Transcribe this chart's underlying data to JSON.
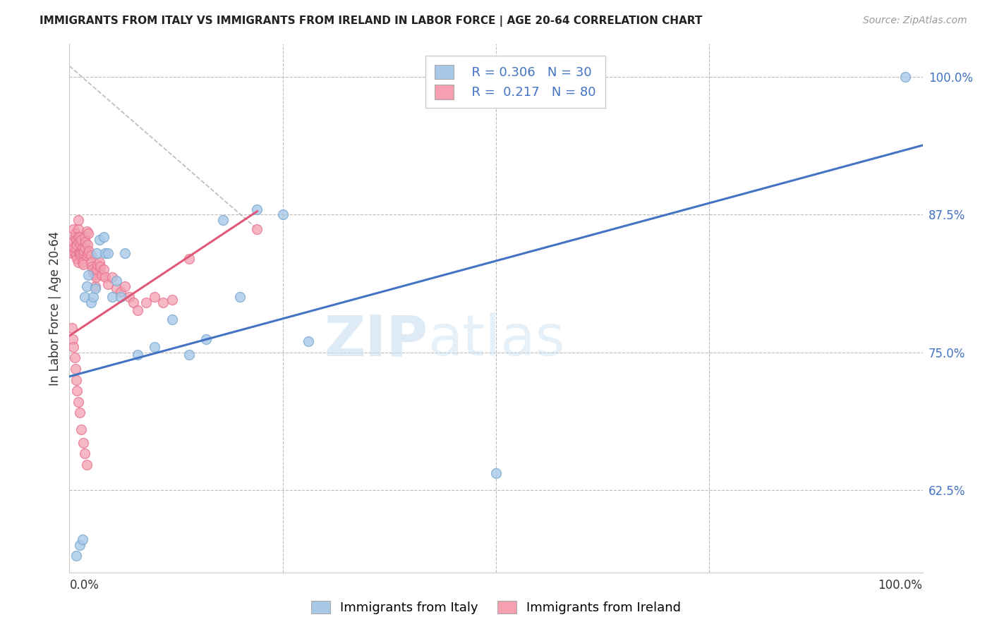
{
  "title": "IMMIGRANTS FROM ITALY VS IMMIGRANTS FROM IRELAND IN LABOR FORCE | AGE 20-64 CORRELATION CHART",
  "source": "Source: ZipAtlas.com",
  "ylabel": "In Labor Force | Age 20-64",
  "xlim": [
    0.0,
    1.0
  ],
  "ylim": [
    0.55,
    1.03
  ],
  "ytick_positions": [
    0.625,
    0.75,
    0.875,
    1.0
  ],
  "ytick_labels": [
    "62.5%",
    "75.0%",
    "87.5%",
    "100.0%"
  ],
  "xticks_grid": [
    0.0,
    0.25,
    0.5,
    0.75,
    1.0
  ],
  "italy_color": "#A8C8E8",
  "ireland_color": "#F4A0B0",
  "italy_edge_color": "#7AAAD0",
  "ireland_edge_color": "#E87090",
  "italy_line_color": "#4472C4",
  "ireland_line_color": "#E05878",
  "italy_R": 0.306,
  "italy_N": 30,
  "ireland_R": 0.217,
  "ireland_N": 80,
  "italy_line_x0": 0.0,
  "italy_line_y0": 0.728,
  "italy_line_x1": 1.0,
  "italy_line_y1": 0.938,
  "ireland_line_x0": 0.0,
  "ireland_line_y0": 0.765,
  "ireland_line_x1": 0.22,
  "ireland_line_y1": 0.878,
  "ref_line_x0": 0.0,
  "ref_line_y0": 1.01,
  "ref_line_x1": 0.22,
  "ref_line_y1": 0.862,
  "italy_scatter_x": [
    0.008,
    0.012,
    0.015,
    0.018,
    0.02,
    0.022,
    0.025,
    0.028,
    0.03,
    0.032,
    0.035,
    0.04,
    0.042,
    0.045,
    0.05,
    0.055,
    0.06,
    0.065,
    0.08,
    0.1,
    0.12,
    0.14,
    0.16,
    0.18,
    0.2,
    0.22,
    0.25,
    0.28,
    0.5,
    0.98
  ],
  "italy_scatter_y": [
    0.565,
    0.575,
    0.58,
    0.8,
    0.81,
    0.82,
    0.795,
    0.8,
    0.808,
    0.84,
    0.852,
    0.855,
    0.84,
    0.84,
    0.8,
    0.815,
    0.8,
    0.84,
    0.748,
    0.755,
    0.78,
    0.748,
    0.762,
    0.87,
    0.8,
    0.88,
    0.875,
    0.76,
    0.64,
    1.0
  ],
  "ireland_scatter_x": [
    0.003,
    0.004,
    0.005,
    0.005,
    0.006,
    0.006,
    0.007,
    0.007,
    0.008,
    0.008,
    0.009,
    0.009,
    0.01,
    0.01,
    0.01,
    0.01,
    0.011,
    0.011,
    0.012,
    0.012,
    0.013,
    0.013,
    0.014,
    0.014,
    0.015,
    0.015,
    0.016,
    0.016,
    0.017,
    0.018,
    0.018,
    0.019,
    0.02,
    0.02,
    0.021,
    0.022,
    0.022,
    0.023,
    0.025,
    0.025,
    0.026,
    0.027,
    0.028,
    0.03,
    0.03,
    0.031,
    0.032,
    0.033,
    0.035,
    0.036,
    0.038,
    0.04,
    0.042,
    0.045,
    0.05,
    0.055,
    0.06,
    0.065,
    0.07,
    0.075,
    0.08,
    0.09,
    0.1,
    0.11,
    0.12,
    0.14,
    0.003,
    0.004,
    0.005,
    0.006,
    0.007,
    0.008,
    0.009,
    0.01,
    0.012,
    0.014,
    0.016,
    0.018,
    0.02,
    0.22
  ],
  "ireland_scatter_y": [
    0.84,
    0.85,
    0.862,
    0.845,
    0.855,
    0.84,
    0.858,
    0.845,
    0.852,
    0.838,
    0.848,
    0.835,
    0.862,
    0.855,
    0.87,
    0.832,
    0.85,
    0.84,
    0.855,
    0.84,
    0.848,
    0.838,
    0.852,
    0.84,
    0.845,
    0.832,
    0.84,
    0.83,
    0.842,
    0.855,
    0.845,
    0.85,
    0.86,
    0.838,
    0.848,
    0.858,
    0.84,
    0.842,
    0.838,
    0.832,
    0.828,
    0.825,
    0.822,
    0.82,
    0.81,
    0.818,
    0.825,
    0.83,
    0.832,
    0.828,
    0.82,
    0.825,
    0.818,
    0.812,
    0.818,
    0.808,
    0.805,
    0.81,
    0.8,
    0.795,
    0.788,
    0.795,
    0.8,
    0.795,
    0.798,
    0.835,
    0.772,
    0.762,
    0.755,
    0.745,
    0.735,
    0.725,
    0.715,
    0.705,
    0.695,
    0.68,
    0.668,
    0.658,
    0.648,
    0.862
  ]
}
